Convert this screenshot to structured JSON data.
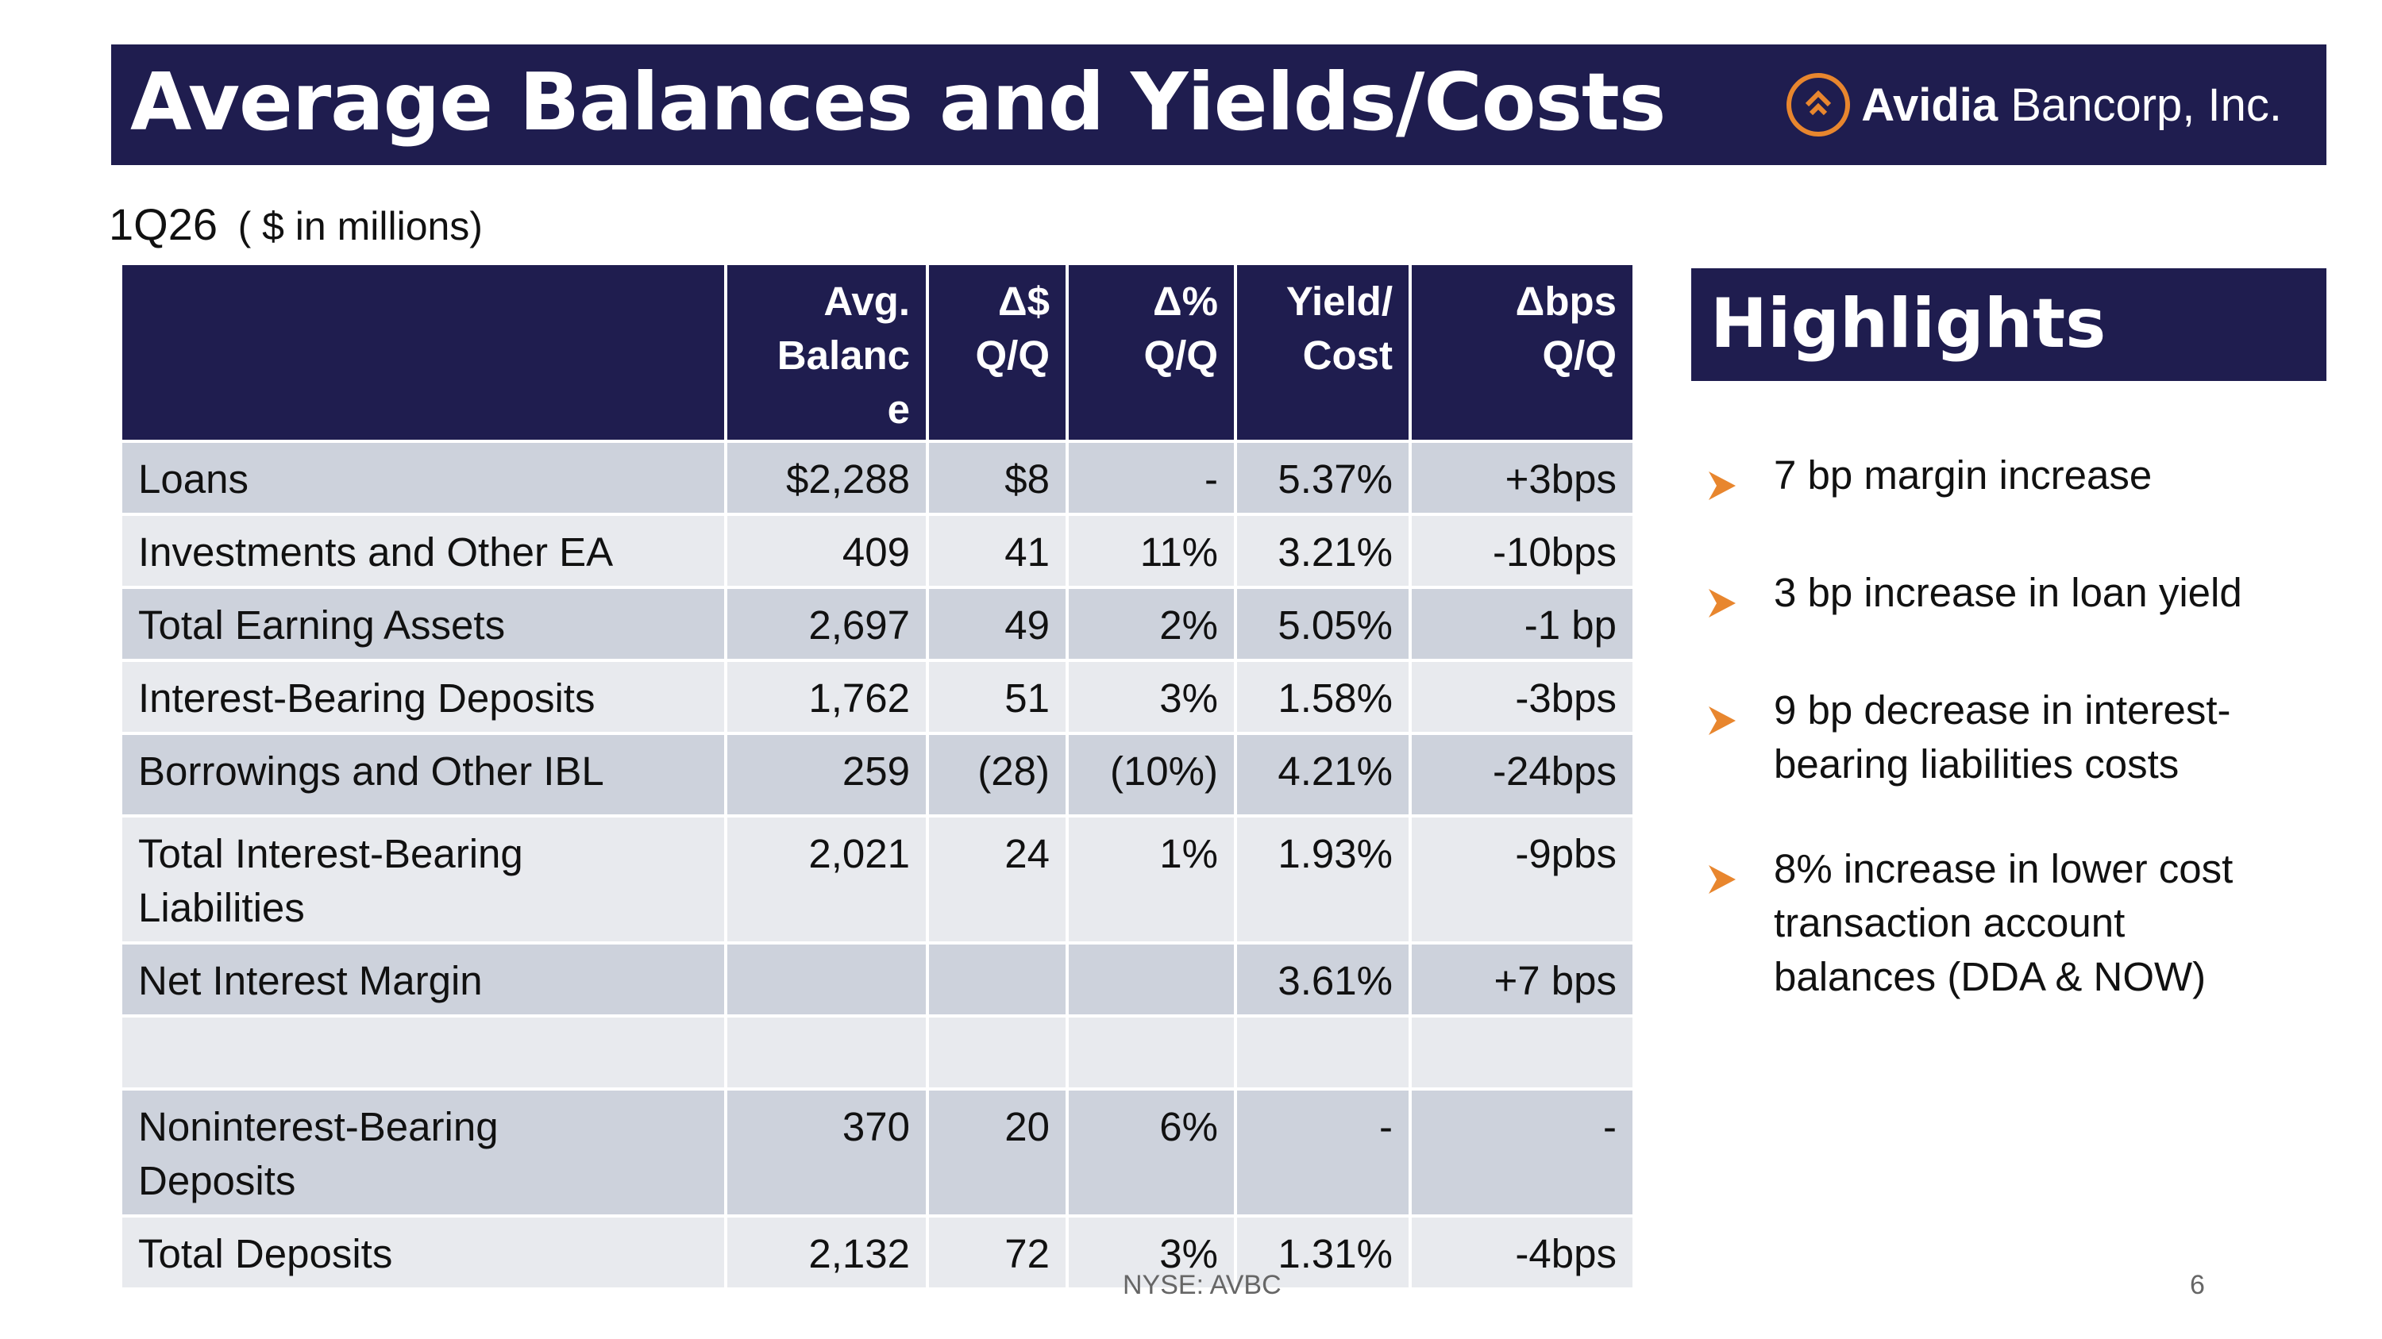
{
  "title": "Average Balances and Yields/Costs",
  "logo": {
    "brand": "Avidia",
    "rest": "Bancorp, Inc."
  },
  "subtitle": {
    "period": "1Q26",
    "units": "( $ in millions)"
  },
  "table": {
    "headers": [
      "",
      "Avg.\nBalanc\ne",
      "Δ$\nQ/Q",
      "Δ%\nQ/Q",
      "Yield/\nCost",
      "Δbps\nQ/Q"
    ],
    "rows": [
      [
        "Loans",
        "$2,288",
        "$8",
        "-",
        "5.37%",
        "+3bps"
      ],
      [
        "Investments and Other EA",
        "409",
        "41",
        "11%",
        "3.21%",
        "-10bps"
      ],
      [
        "Total Earning Assets",
        "2,697",
        "49",
        "2%",
        "5.05%",
        "-1 bp"
      ],
      [
        "Interest-Bearing Deposits",
        "1,762",
        "51",
        "3%",
        "1.58%",
        "-3bps"
      ],
      [
        "Borrowings and Other IBL",
        "259",
        "(28)",
        "(10%)",
        "4.21%",
        "-24bps"
      ],
      [
        "Total Interest-Bearing\nLiabilities",
        "2,021",
        "24",
        "1%",
        "1.93%",
        "-9pbs"
      ],
      [
        "Net Interest Margin",
        "",
        "",
        "",
        "3.61%",
        "+7 bps"
      ],
      [
        "",
        "",
        "",
        "",
        "",
        ""
      ],
      [
        "Noninterest-Bearing\nDeposits",
        "370",
        "20",
        "6%",
        "-",
        "-"
      ],
      [
        "Total Deposits",
        "2,132",
        "72",
        "3%",
        "1.31%",
        "-4bps"
      ]
    ]
  },
  "highlights": {
    "title": "Highlights",
    "items": [
      "7 bp margin increase",
      "3 bp increase in loan yield",
      "9 bp decrease in interest-\nbearing liabilities costs",
      "8% increase in lower cost\ntransaction account\nbalances (DDA & NOW)"
    ]
  },
  "footer": {
    "ticker": "NYSE: AVBC",
    "page": "6"
  },
  "colors": {
    "navy": "#1f1d4f",
    "accent": "#e8862e",
    "row_dark": "#cdd2dc",
    "row_light": "#e8eaee"
  }
}
